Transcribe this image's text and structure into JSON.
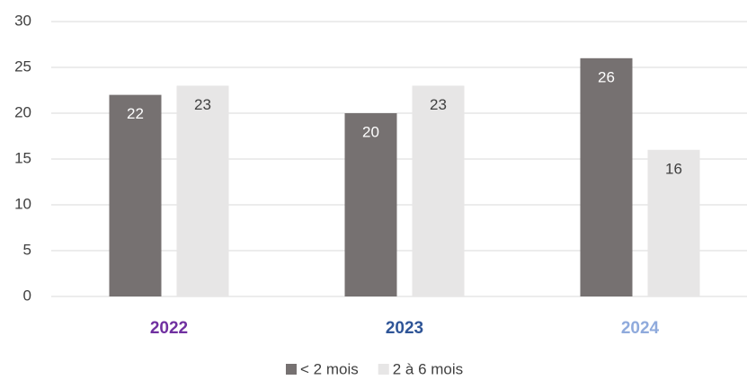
{
  "chart_data": {
    "type": "bar",
    "categories": [
      "2022",
      "2023",
      "2024"
    ],
    "category_colors": [
      "#7030a0",
      "#2f5597",
      "#8faadc"
    ],
    "series": [
      {
        "name": "< 2 mois",
        "color": "#767171",
        "label_color": "#ffffff",
        "values": [
          22,
          20,
          26
        ]
      },
      {
        "name": "2 à 6 mois",
        "color": "#e7e6e6",
        "label_color": "#404040",
        "values": [
          23,
          23,
          16
        ]
      }
    ],
    "ylim": [
      0,
      30
    ],
    "yticks": [
      0,
      5,
      10,
      15,
      20,
      25,
      30
    ],
    "grid": true,
    "legend": "bottom"
  }
}
